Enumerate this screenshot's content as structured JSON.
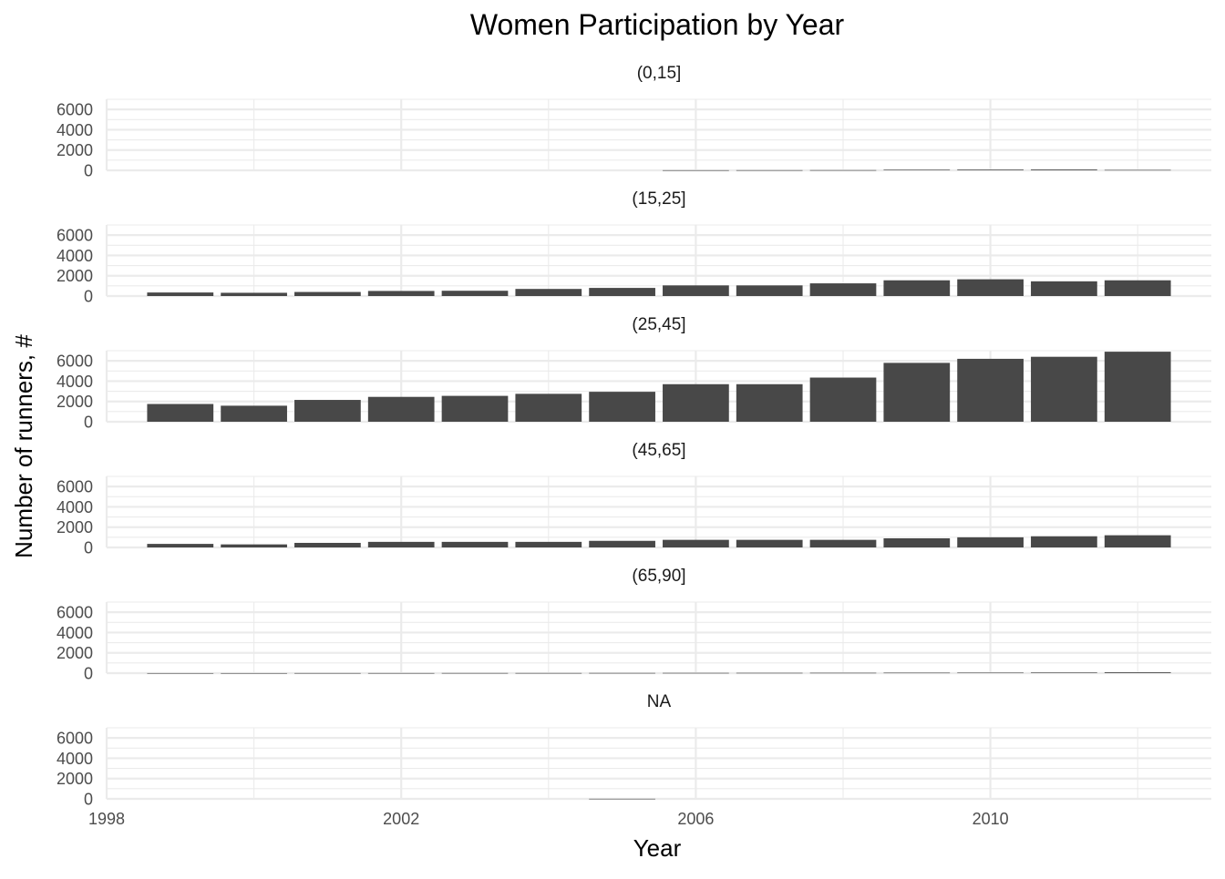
{
  "chart_data": {
    "type": "bar",
    "title": "Women Participation by Year",
    "xlabel": "Year",
    "ylabel": "Number of runners, #",
    "x": [
      1999,
      2000,
      2001,
      2002,
      2003,
      2004,
      2005,
      2006,
      2007,
      2008,
      2009,
      2010,
      2011,
      2012
    ],
    "xlim": [
      1998,
      2013
    ],
    "x_ticks": [
      1998,
      2002,
      2006,
      2010
    ],
    "x_tick_labels": [
      "1998",
      "2002",
      "2006",
      "2010"
    ],
    "ylim": [
      0,
      7000
    ],
    "y_ticks": [
      0,
      2000,
      4000,
      6000
    ],
    "y_tick_labels": [
      "0",
      "2000",
      "4000",
      "6000"
    ],
    "bar_color": "#484848",
    "grid": true,
    "facets": [
      {
        "label": "(0,15]",
        "values": [
          0,
          0,
          0,
          0,
          0,
          0,
          0,
          10,
          15,
          20,
          60,
          70,
          80,
          40
        ]
      },
      {
        "label": "(15,25]",
        "values": [
          350,
          320,
          400,
          500,
          520,
          700,
          800,
          1050,
          1050,
          1250,
          1550,
          1650,
          1450,
          1550
        ]
      },
      {
        "label": "(25,45]",
        "values": [
          1750,
          1580,
          2150,
          2450,
          2550,
          2750,
          2950,
          3700,
          3700,
          4350,
          5800,
          6200,
          6400,
          6900
        ]
      },
      {
        "label": "(45,65]",
        "values": [
          350,
          300,
          450,
          550,
          550,
          550,
          650,
          750,
          750,
          750,
          900,
          1000,
          1100,
          1200
        ]
      },
      {
        "label": "(65,90]",
        "values": [
          5,
          5,
          10,
          10,
          15,
          15,
          20,
          25,
          30,
          35,
          45,
          50,
          60,
          80
        ]
      },
      {
        "label": "NA",
        "values": [
          0,
          0,
          0,
          0,
          0,
          0,
          10,
          0,
          0,
          0,
          0,
          0,
          0,
          0
        ]
      }
    ]
  }
}
